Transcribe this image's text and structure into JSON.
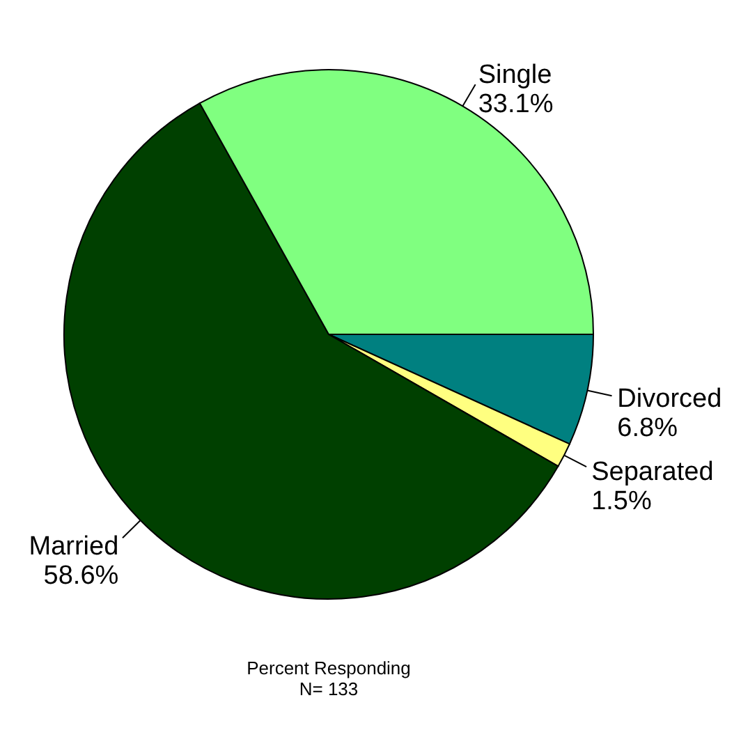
{
  "chart_data": {
    "type": "pie",
    "categories": [
      "Divorced",
      "Separated",
      "Married",
      "Single"
    ],
    "values": [
      6.8,
      1.5,
      58.6,
      33.1
    ],
    "colors": [
      "#008080",
      "#ffff80",
      "#004000",
      "#80ff80"
    ],
    "value_labels": [
      "6.8%",
      "1.5%",
      "58.6%",
      "33.1%"
    ],
    "annotations": [
      "Percent Responding",
      "N= 133"
    ]
  }
}
